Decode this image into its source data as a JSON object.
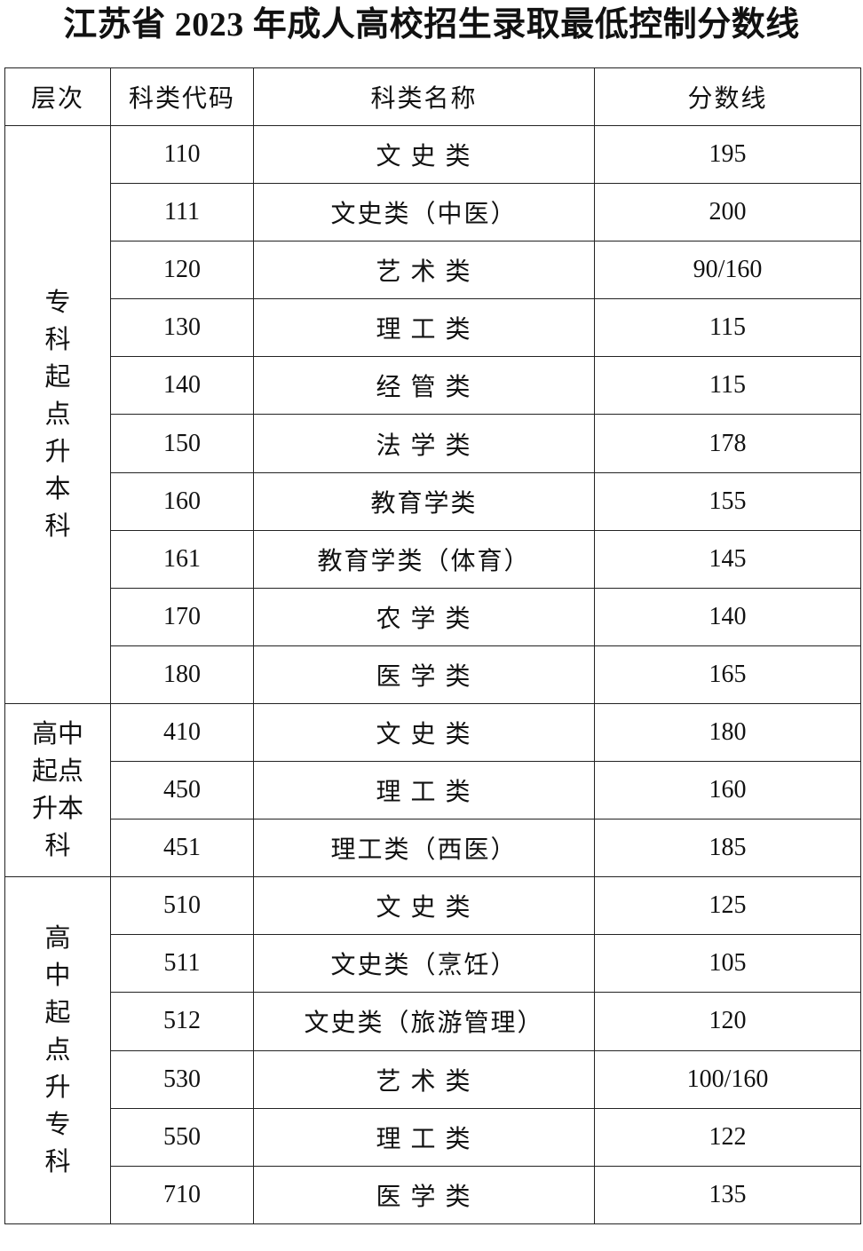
{
  "title": "江苏省 2023 年成人高校招生录取最低控制分数线",
  "table": {
    "header": [
      "层次",
      "科类代码",
      "科类名称",
      "分数线"
    ],
    "groups": [
      {
        "label": "专科起点升本科",
        "rows": [
          [
            "110",
            "文 史 类",
            "195"
          ],
          [
            "111",
            "文史类（中医）",
            "200"
          ],
          [
            "120",
            "艺 术 类",
            "90/160"
          ],
          [
            "130",
            "理 工 类",
            "115"
          ],
          [
            "140",
            "经 管 类",
            "115"
          ],
          [
            "150",
            "法 学 类",
            "178"
          ],
          [
            "160",
            "教育学类",
            "155"
          ],
          [
            "161",
            "教育学类（体育）",
            "145"
          ],
          [
            "170",
            "农 学 类",
            "140"
          ],
          [
            "180",
            "医 学 类",
            "165"
          ]
        ]
      },
      {
        "label": "高中起点升本科",
        "rows": [
          [
            "410",
            "文 史 类",
            "180"
          ],
          [
            "450",
            "理 工 类",
            "160"
          ],
          [
            "451",
            "理工类（西医）",
            "185"
          ]
        ]
      },
      {
        "label": "高中起点升专科",
        "rows": [
          [
            "510",
            "文 史 类",
            "125"
          ],
          [
            "511",
            "文史类（烹饪）",
            "105"
          ],
          [
            "512",
            "文史类（旅游管理）",
            "120"
          ],
          [
            "530",
            "艺 术 类",
            "100/160"
          ],
          [
            "550",
            "理 工 类",
            "122"
          ],
          [
            "710",
            "医 学 类",
            "135"
          ]
        ]
      }
    ]
  }
}
